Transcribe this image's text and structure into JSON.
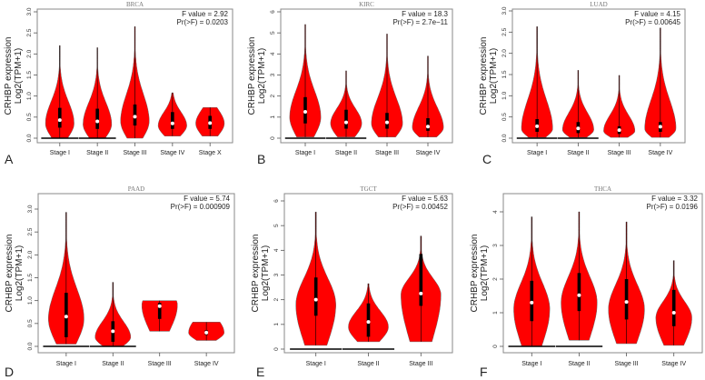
{
  "colors": {
    "violin_fill": "#ff0000",
    "box": "#000000",
    "median_dot": "#ffffff",
    "frame": "#888888"
  },
  "chart_data": [
    {
      "type": "violin",
      "panel_label": "A",
      "title": "BRCA",
      "ylabel": [
        "CRHBP expression",
        "Log2(TPM+1)"
      ],
      "ylim": [
        0,
        3
      ],
      "yticks": [
        "0.0",
        "0.5",
        "1.0",
        "1.5",
        "2.0",
        "2.5",
        "3.0"
      ],
      "ytick_values": [
        0,
        0.5,
        1,
        1.5,
        2,
        2.5,
        3
      ],
      "stat_lines": [
        "F value = 2.92",
        "Pr(>F) = 0.0203"
      ],
      "categories": [
        "Stage I",
        "Stage II",
        "Stage III",
        "Stage IV",
        "Stage X"
      ],
      "violins": [
        {
          "min": 0,
          "max": 2.2,
          "q1": 0.25,
          "median": 0.43,
          "q3": 0.72,
          "mode": 0.35,
          "zero_values": true
        },
        {
          "min": 0,
          "max": 2.15,
          "q1": 0.22,
          "median": 0.4,
          "q3": 0.7,
          "mode": 0.33,
          "zero_values": true
        },
        {
          "min": 0,
          "max": 2.65,
          "q1": 0.3,
          "median": 0.51,
          "q3": 0.8,
          "mode": 0.4,
          "zero_values": false
        },
        {
          "min": 0.05,
          "max": 1.08,
          "q1": 0.22,
          "median": 0.35,
          "q3": 0.62,
          "mode": 0.3,
          "zero_values": false
        },
        {
          "min": 0.05,
          "max": 0.73,
          "q1": 0.22,
          "median": 0.36,
          "q3": 0.53,
          "mode": 0.35,
          "zero_values": false
        }
      ]
    },
    {
      "type": "violin",
      "panel_label": "B",
      "title": "KIRC",
      "ylabel": [
        "CRHBP expression",
        "Log2(TPM+1)"
      ],
      "ylim": [
        0,
        6
      ],
      "yticks": [
        "0",
        "1",
        "2",
        "3",
        "4",
        "5",
        "6"
      ],
      "ytick_values": [
        0,
        1,
        2,
        3,
        4,
        5,
        6
      ],
      "stat_lines": [
        "F value = 18.3",
        "Pr(>F) = 2.7e−11"
      ],
      "categories": [
        "Stage I",
        "Stage II",
        "Stage III",
        "Stage IV"
      ],
      "violins": [
        {
          "min": 0.05,
          "max": 5.4,
          "q1": 0.7,
          "median": 1.25,
          "q3": 1.95,
          "mode": 1.0,
          "zero_values": true
        },
        {
          "min": 0.05,
          "max": 3.2,
          "q1": 0.45,
          "median": 0.75,
          "q3": 1.35,
          "mode": 0.7,
          "zero_values": true
        },
        {
          "min": 0.05,
          "max": 4.95,
          "q1": 0.45,
          "median": 0.75,
          "q3": 1.2,
          "mode": 0.7,
          "zero_values": false
        },
        {
          "min": 0.05,
          "max": 3.9,
          "q1": 0.35,
          "median": 0.55,
          "q3": 0.95,
          "mode": 0.5,
          "zero_values": false
        }
      ]
    },
    {
      "type": "violin",
      "panel_label": "C",
      "title": "LUAD",
      "ylabel": [
        "CRHBP expression",
        "Log2(TPM+1)"
      ],
      "ylim": [
        0,
        3
      ],
      "yticks": [
        "0.0",
        "0.5",
        "1.0",
        "1.5",
        "2.0",
        "2.5",
        "3.0"
      ],
      "ytick_values": [
        0,
        0.5,
        1,
        1.5,
        2,
        2.5,
        3
      ],
      "stat_lines": [
        "F value = 4.15",
        "Pr(>F) = 0.00645"
      ],
      "categories": [
        "Stage I",
        "Stage II",
        "Stage III",
        "Stage IV"
      ],
      "violins": [
        {
          "min": 0.02,
          "max": 2.63,
          "q1": 0.15,
          "median": 0.28,
          "q3": 0.45,
          "mode": 0.22,
          "zero_values": true
        },
        {
          "min": 0.02,
          "max": 1.6,
          "q1": 0.12,
          "median": 0.23,
          "q3": 0.38,
          "mode": 0.2,
          "zero_values": true
        },
        {
          "min": 0.02,
          "max": 1.48,
          "q1": 0.1,
          "median": 0.19,
          "q3": 0.28,
          "mode": 0.17,
          "zero_values": false
        },
        {
          "min": 0.02,
          "max": 2.6,
          "q1": 0.15,
          "median": 0.27,
          "q3": 0.38,
          "mode": 0.22,
          "zero_values": false
        }
      ]
    },
    {
      "type": "violin",
      "panel_label": "D",
      "title": "PAAD",
      "ylabel": [
        "CRHBP expression",
        "Log2(TPM+1)"
      ],
      "ylim": [
        0,
        3
      ],
      "yticks": [
        "0.0",
        "0.5",
        "1.0",
        "1.5",
        "2.0",
        "2.5",
        "3.0"
      ],
      "ytick_values": [
        0,
        0.5,
        1,
        1.5,
        2,
        2.5,
        3
      ],
      "stat_lines": [
        "F value = 5.74",
        "Pr(>F) = 0.000909"
      ],
      "categories": [
        "Stage I",
        "Stage II",
        "Stage III",
        "Stage IV"
      ],
      "violins": [
        {
          "min": 0.05,
          "max": 2.93,
          "q1": 0.2,
          "median": 0.65,
          "q3": 1.17,
          "mode": 0.6,
          "zero_values": true
        },
        {
          "min": 0,
          "max": 1.4,
          "q1": 0.1,
          "median": 0.33,
          "q3": 0.55,
          "mode": 0.2,
          "zero_values": true
        },
        {
          "min": 0.33,
          "max": 1.0,
          "q1": 0.6,
          "median": 0.88,
          "q3": 0.95,
          "mode": 0.9,
          "zero_values": false
        },
        {
          "min": 0.13,
          "max": 0.53,
          "q1": 0.25,
          "median": 0.3,
          "q3": 0.35,
          "mode": 0.3,
          "zero_values": false
        }
      ]
    },
    {
      "type": "violin",
      "panel_label": "E",
      "title": "TGCT",
      "ylabel": [
        "CRHBP expression",
        "Log2(TPM+1)"
      ],
      "ylim": [
        0,
        6
      ],
      "yticks": [
        "0",
        "1",
        "2",
        "3",
        "4",
        "5",
        "6"
      ],
      "ytick_values": [
        0,
        1,
        2,
        3,
        4,
        5,
        6
      ],
      "stat_lines": [
        "F value = 5.63",
        "Pr(>F) = 0.00452"
      ],
      "categories": [
        "Stage I",
        "Stage II",
        "Stage III"
      ],
      "violins": [
        {
          "min": 0.15,
          "max": 5.55,
          "q1": 1.35,
          "median": 2.0,
          "q3": 2.9,
          "mode": 1.8,
          "zero_values": true
        },
        {
          "min": 0.3,
          "max": 2.65,
          "q1": 0.5,
          "median": 1.1,
          "q3": 1.85,
          "mode": 0.9,
          "zero_values": true
        },
        {
          "min": 0.3,
          "max": 4.58,
          "q1": 1.75,
          "median": 2.25,
          "q3": 3.85,
          "mode": 2.2,
          "zero_values": false
        }
      ]
    },
    {
      "type": "violin",
      "panel_label": "F",
      "title": "THCA",
      "ylabel": [
        "CRHBP expression",
        "Log2(TPM+1)"
      ],
      "ylim": [
        0,
        4
      ],
      "yticks": [
        "0",
        "1",
        "2",
        "3",
        "4"
      ],
      "ytick_values": [
        0,
        1,
        2,
        3,
        4
      ],
      "stat_lines": [
        "F value = 3.32",
        "Pr(>F) = 0.0196"
      ],
      "categories": [
        "Stage I",
        "Stage II",
        "Stage III",
        "Stage IV"
      ],
      "violins": [
        {
          "min": 0,
          "max": 3.85,
          "q1": 0.75,
          "median": 1.3,
          "q3": 1.95,
          "mode": 1.1,
          "zero_values": true
        },
        {
          "min": 0.18,
          "max": 4.0,
          "q1": 1.05,
          "median": 1.52,
          "q3": 2.18,
          "mode": 1.3,
          "zero_values": true
        },
        {
          "min": 0.08,
          "max": 3.7,
          "q1": 0.8,
          "median": 1.32,
          "q3": 2.0,
          "mode": 1.1,
          "zero_values": false
        },
        {
          "min": 0.03,
          "max": 2.55,
          "q1": 0.6,
          "median": 1.0,
          "q3": 1.68,
          "mode": 0.85,
          "zero_values": false
        }
      ]
    }
  ]
}
